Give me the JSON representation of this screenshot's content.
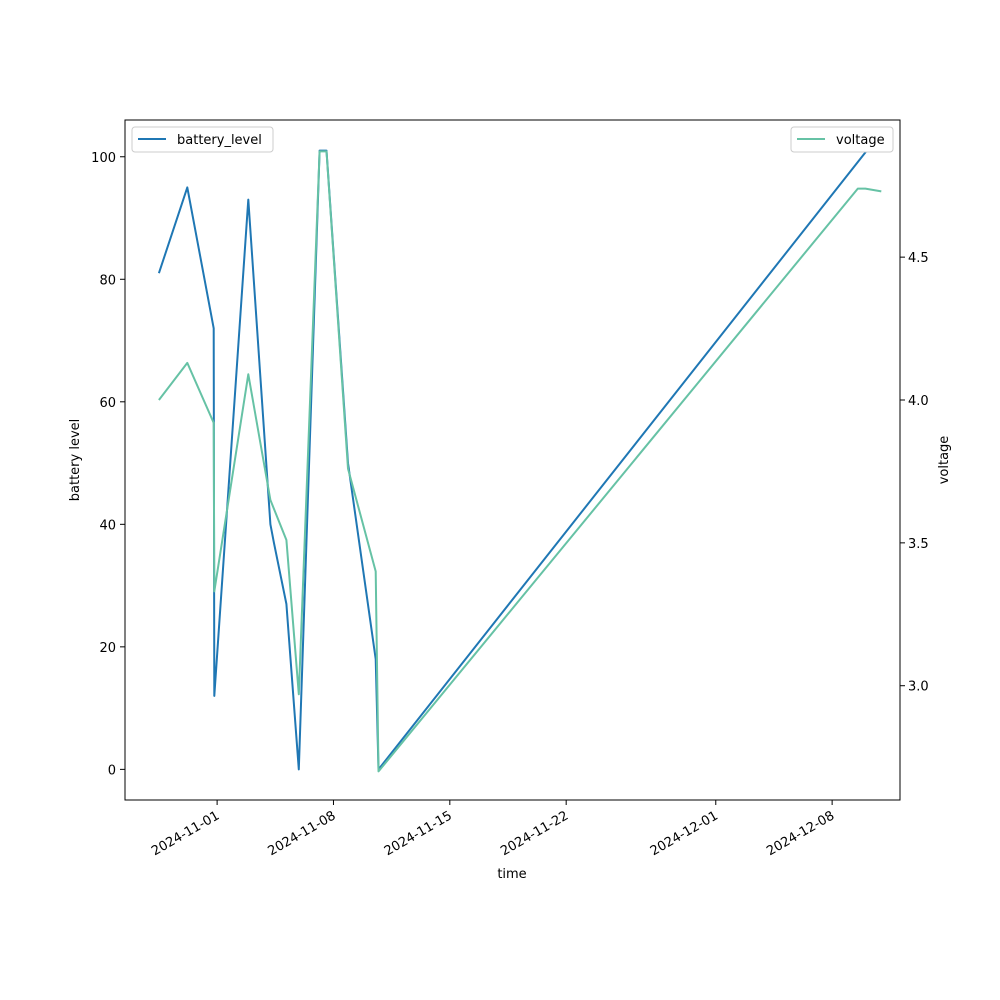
{
  "chart_data": {
    "type": "line",
    "title": "",
    "xlabel": "time",
    "ylabel_left": "battery level",
    "ylabel_right": "voltage",
    "x_ticks": [
      "2024-11-01",
      "2024-11-08",
      "2024-11-15",
      "2024-11-22",
      "2024-12-01",
      "2024-12-08"
    ],
    "y_left_ticks": [
      0,
      20,
      40,
      60,
      80,
      100
    ],
    "y_right_ticks": [
      "3.0",
      "3.5",
      "4.0",
      "4.5"
    ],
    "y_left_range": [
      -5,
      106
    ],
    "y_right_range": [
      2.6,
      4.98
    ],
    "x_range": [
      "2024-10-26T11:00",
      "2024-12-12T02:00"
    ],
    "legend_left_position": "upper-left",
    "legend_right_position": "upper-right",
    "grid": false,
    "series": [
      {
        "name": "battery_level",
        "axis": "left",
        "color": "#1f77b4",
        "points": [
          [
            "2024-10-28T12:00",
            81
          ],
          [
            "2024-10-30T05:00",
            95
          ],
          [
            "2024-10-31T19:00",
            72
          ],
          [
            "2024-10-31T20:00",
            12
          ],
          [
            "2024-11-02T21:00",
            93
          ],
          [
            "2024-11-04T05:00",
            40
          ],
          [
            "2024-11-04T10:00",
            37
          ],
          [
            "2024-11-05T04:00",
            27
          ],
          [
            "2024-11-05T22:00",
            0
          ],
          [
            "2024-11-07T04:00",
            101
          ],
          [
            "2024-11-07T14:00",
            101
          ],
          [
            "2024-11-08T21:00",
            50
          ],
          [
            "2024-11-10T13:00",
            18
          ],
          [
            "2024-11-10T17:00",
            0
          ],
          [
            "2024-12-10T02:00",
            101
          ],
          [
            "2024-12-10T23:00",
            101
          ]
        ]
      },
      {
        "name": "voltage",
        "axis": "right",
        "color": "#66c2a5",
        "points": [
          [
            "2024-10-28T12:00",
            4.0
          ],
          [
            "2024-10-30T05:00",
            4.13
          ],
          [
            "2024-10-31T19:00",
            3.92
          ],
          [
            "2024-10-31T20:00",
            3.33
          ],
          [
            "2024-11-02T21:00",
            4.09
          ],
          [
            "2024-11-04T05:00",
            3.65
          ],
          [
            "2024-11-05T04:00",
            3.51
          ],
          [
            "2024-11-05T22:00",
            2.97
          ],
          [
            "2024-11-07T04:00",
            4.87
          ],
          [
            "2024-11-07T14:00",
            4.87
          ],
          [
            "2024-11-08T21:00",
            3.76
          ],
          [
            "2024-11-10T13:00",
            3.4
          ],
          [
            "2024-11-10T17:00",
            2.7
          ],
          [
            "2024-12-09T13:00",
            4.74
          ],
          [
            "2024-12-10T00:00",
            4.74
          ],
          [
            "2024-12-10T23:00",
            4.73
          ]
        ]
      }
    ]
  }
}
